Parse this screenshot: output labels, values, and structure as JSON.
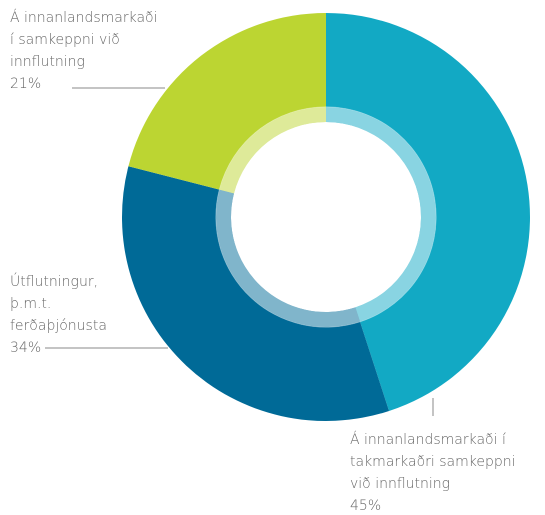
{
  "chart_data": {
    "type": "donut",
    "categories": [
      [
        "Á innanlandsmarkaði í",
        "takmarkaðri samkeppni",
        "við innflutning"
      ],
      [
        "Útflutningur,",
        "þ.m.t.",
        "ferðaþjónusta"
      ],
      [
        "Á innanlandsmarkaði",
        "í samkeppni við",
        "innflutning"
      ]
    ],
    "values": [
      45,
      34,
      21
    ],
    "value_labels": [
      "45%",
      "34%",
      "21%"
    ],
    "colors": [
      "#12a9c4",
      "#006a97",
      "#bcd532"
    ]
  }
}
